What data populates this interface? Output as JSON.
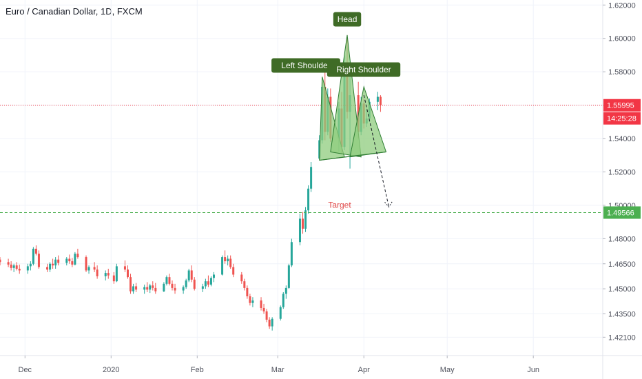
{
  "header": {
    "title": "Euro / Canadian Dollar, 1D, FXCM"
  },
  "colors": {
    "up": "#26a69a",
    "down": "#ef5350",
    "pattern_fill": "#8fcc7e",
    "pattern_stroke": "#2e7d32",
    "label_bg": "#3f6b26",
    "current_price": "#f23645",
    "target": "#4caf50",
    "target_text": "#e04747"
  },
  "labels": {
    "head": "Head",
    "left_shoulder": "Left Shoulder",
    "right_shoulder": "Right Shoulder",
    "target": "Target"
  },
  "price_tags": {
    "current": "1.55995",
    "countdown": "14:25:28",
    "target": "1.49566"
  },
  "chart_data": {
    "type": "candlestick",
    "title": "Euro / Canadian Dollar, 1D, FXCM",
    "x_range": [
      "2019-11-22",
      "2020-06-26"
    ],
    "ylim": [
      1.41,
      1.623
    ],
    "y_ticks": [
      "1.62000",
      "1.60000",
      "1.58000",
      "1.56000",
      "1.54000",
      "1.52000",
      "1.50000",
      "1.48000",
      "1.46500",
      "1.45000",
      "1.43500",
      "1.42100"
    ],
    "x_ticks": [
      {
        "date": "2019-12-01",
        "label": "Dec"
      },
      {
        "date": "2020-01-01",
        "label": "2020"
      },
      {
        "date": "2020-02-01",
        "label": "Feb"
      },
      {
        "date": "2020-03-01",
        "label": "Mar"
      },
      {
        "date": "2020-04-01",
        "label": "Apr"
      },
      {
        "date": "2020-05-01",
        "label": "May"
      },
      {
        "date": "2020-06-01",
        "label": "Jun"
      }
    ],
    "current_price": 1.55995,
    "target_price": 1.49566,
    "candles": [
      [
        "2019-11-22",
        1.4675,
        1.469,
        1.464,
        1.466
      ],
      [
        "2019-11-25",
        1.466,
        1.468,
        1.463,
        1.4645
      ],
      [
        "2019-11-26",
        1.4645,
        1.4665,
        1.461,
        1.4625
      ],
      [
        "2019-11-27",
        1.4625,
        1.465,
        1.46,
        1.464
      ],
      [
        "2019-11-28",
        1.464,
        1.466,
        1.461,
        1.462
      ],
      [
        "2019-11-29",
        1.462,
        1.4645,
        1.459,
        1.461
      ],
      [
        "2019-12-02",
        1.461,
        1.465,
        1.459,
        1.4635
      ],
      [
        "2019-12-03",
        1.4635,
        1.4665,
        1.461,
        1.465
      ],
      [
        "2019-12-04",
        1.465,
        1.475,
        1.464,
        1.474
      ],
      [
        "2019-12-05",
        1.474,
        1.476,
        1.47,
        1.471
      ],
      [
        "2019-12-06",
        1.471,
        1.473,
        1.462,
        1.463
      ],
      [
        "2019-12-09",
        1.463,
        1.465,
        1.46,
        1.4615
      ],
      [
        "2019-12-10",
        1.4615,
        1.466,
        1.46,
        1.465
      ],
      [
        "2019-12-11",
        1.465,
        1.468,
        1.462,
        1.464
      ],
      [
        "2019-12-12",
        1.464,
        1.469,
        1.462,
        1.4675
      ],
      [
        "2019-12-13",
        1.4675,
        1.47,
        1.464,
        1.4655
      ],
      [
        "2019-12-16",
        1.4655,
        1.469,
        1.464,
        1.468
      ],
      [
        "2019-12-17",
        1.468,
        1.4705,
        1.465,
        1.4665
      ],
      [
        "2019-12-18",
        1.4665,
        1.4685,
        1.463,
        1.4645
      ],
      [
        "2019-12-19",
        1.4645,
        1.472,
        1.464,
        1.471
      ],
      [
        "2019-12-20",
        1.471,
        1.474,
        1.468,
        1.469
      ],
      [
        "2019-12-23",
        1.469,
        1.47,
        1.46,
        1.461
      ],
      [
        "2019-12-24",
        1.461,
        1.464,
        1.459,
        1.463
      ],
      [
        "2019-12-26",
        1.463,
        1.466,
        1.46,
        1.4615
      ],
      [
        "2019-12-27",
        1.4615,
        1.464,
        1.456,
        1.4575
      ],
      [
        "2019-12-30",
        1.4575,
        1.461,
        1.455,
        1.4595
      ],
      [
        "2019-12-31",
        1.4595,
        1.462,
        1.456,
        1.458
      ],
      [
        "2020-01-02",
        1.458,
        1.46,
        1.453,
        1.4545
      ],
      [
        "2020-01-03",
        1.4545,
        1.465,
        1.454,
        1.4635
      ],
      [
        "2020-01-06",
        1.4635,
        1.467,
        1.46,
        1.4615
      ],
      [
        "2020-01-07",
        1.4615,
        1.464,
        1.456,
        1.457
      ],
      [
        "2020-01-08",
        1.457,
        1.459,
        1.447,
        1.4485
      ],
      [
        "2020-01-09",
        1.4485,
        1.453,
        1.447,
        1.4515
      ],
      [
        "2020-01-10",
        1.4515,
        1.4535,
        1.448,
        1.4495
      ],
      [
        "2020-01-13",
        1.4495,
        1.4525,
        1.447,
        1.451
      ],
      [
        "2020-01-14",
        1.451,
        1.454,
        1.448,
        1.4495
      ],
      [
        "2020-01-15",
        1.4495,
        1.453,
        1.4475,
        1.452
      ],
      [
        "2020-01-16",
        1.452,
        1.4545,
        1.449,
        1.4505
      ],
      [
        "2020-01-17",
        1.4505,
        1.4535,
        1.447,
        1.4485
      ],
      [
        "2020-01-20",
        1.4485,
        1.454,
        1.448,
        1.453
      ],
      [
        "2020-01-21",
        1.453,
        1.458,
        1.452,
        1.457
      ],
      [
        "2020-01-22",
        1.457,
        1.459,
        1.452,
        1.453
      ],
      [
        "2020-01-23",
        1.453,
        1.455,
        1.449,
        1.4505
      ],
      [
        "2020-01-24",
        1.4505,
        1.453,
        1.447,
        1.449
      ],
      [
        "2020-01-27",
        1.449,
        1.452,
        1.447,
        1.451
      ],
      [
        "2020-01-28",
        1.451,
        1.456,
        1.45,
        1.455
      ],
      [
        "2020-01-29",
        1.455,
        1.462,
        1.454,
        1.461
      ],
      [
        "2020-01-30",
        1.461,
        1.464,
        1.454,
        1.4555
      ],
      [
        "2020-01-31",
        1.4555,
        1.457,
        1.449,
        1.45
      ],
      [
        "2020-02-03",
        1.45,
        1.453,
        1.448,
        1.4515
      ],
      [
        "2020-02-04",
        1.4515,
        1.456,
        1.45,
        1.4545
      ],
      [
        "2020-02-05",
        1.4545,
        1.458,
        1.451,
        1.4525
      ],
      [
        "2020-02-06",
        1.4525,
        1.4575,
        1.4515,
        1.4565
      ],
      [
        "2020-02-07",
        1.4565,
        1.46,
        1.454,
        1.4585
      ],
      [
        "2020-02-10",
        1.4585,
        1.47,
        1.458,
        1.469
      ],
      [
        "2020-02-11",
        1.469,
        1.473,
        1.465,
        1.4665
      ],
      [
        "2020-02-12",
        1.4665,
        1.47,
        1.464,
        1.468
      ],
      [
        "2020-02-13",
        1.468,
        1.47,
        1.462,
        1.463
      ],
      [
        "2020-02-14",
        1.463,
        1.465,
        1.457,
        1.4585
      ],
      [
        "2020-02-17",
        1.4585,
        1.46,
        1.453,
        1.4545
      ],
      [
        "2020-02-18",
        1.4545,
        1.456,
        1.449,
        1.4505
      ],
      [
        "2020-02-19",
        1.4505,
        1.452,
        1.444,
        1.4455
      ],
      [
        "2020-02-20",
        1.4455,
        1.447,
        1.44,
        1.4415
      ],
      [
        "2020-02-21",
        1.4415,
        1.445,
        1.439,
        1.443
      ],
      [
        "2020-02-24",
        1.443,
        1.445,
        1.437,
        1.4385
      ],
      [
        "2020-02-25",
        1.4385,
        1.441,
        1.435,
        1.4365
      ],
      [
        "2020-02-26",
        1.4365,
        1.438,
        1.43,
        1.4315
      ],
      [
        "2020-02-27",
        1.4315,
        1.433,
        1.426,
        1.4275
      ],
      [
        "2020-02-28",
        1.4275,
        1.433,
        1.425,
        1.432
      ],
      [
        "2020-03-02",
        1.432,
        1.44,
        1.431,
        1.439
      ],
      [
        "2020-03-03",
        1.439,
        1.448,
        1.438,
        1.447
      ],
      [
        "2020-03-04",
        1.447,
        1.452,
        1.444,
        1.4505
      ],
      [
        "2020-03-05",
        1.4505,
        1.465,
        1.45,
        1.464
      ],
      [
        "2020-03-06",
        1.464,
        1.48,
        1.463,
        1.478
      ],
      [
        "2020-03-09",
        1.478,
        1.495,
        1.476,
        1.492
      ],
      [
        "2020-03-10",
        1.492,
        1.496,
        1.483,
        1.486
      ],
      [
        "2020-03-11",
        1.486,
        1.499,
        1.484,
        1.497
      ],
      [
        "2020-03-12",
        1.497,
        1.512,
        1.495,
        1.51
      ],
      [
        "2020-03-13",
        1.51,
        1.526,
        1.508,
        1.523
      ],
      [
        "2020-03-16",
        1.528,
        1.542,
        1.527,
        1.539
      ],
      [
        "2020-03-17",
        1.539,
        1.574,
        1.537,
        1.571
      ],
      [
        "2020-03-18",
        1.571,
        1.58,
        1.539,
        1.544
      ],
      [
        "2020-03-19",
        1.544,
        1.57,
        1.542,
        1.565
      ],
      [
        "2020-03-20",
        1.565,
        1.57,
        1.538,
        1.54
      ],
      [
        "2020-03-23",
        1.54,
        1.562,
        1.532,
        1.558
      ],
      [
        "2020-03-24",
        1.558,
        1.568,
        1.531,
        1.535
      ],
      [
        "2020-03-25",
        1.535,
        1.59,
        1.533,
        1.582
      ],
      [
        "2020-03-26",
        1.582,
        1.602,
        1.552,
        1.556
      ],
      [
        "2020-03-27",
        1.556,
        1.586,
        1.522,
        1.566
      ],
      [
        "2020-03-30",
        1.566,
        1.574,
        1.54,
        1.544
      ],
      [
        "2020-03-31",
        1.544,
        1.565,
        1.542,
        1.561
      ],
      [
        "2020-04-01",
        1.561,
        1.564,
        1.546,
        1.549
      ],
      [
        "2020-04-02",
        1.549,
        1.558,
        1.547,
        1.552
      ],
      [
        "2020-04-03",
        1.552,
        1.564,
        1.55,
        1.562
      ],
      [
        "2020-04-06",
        1.562,
        1.568,
        1.557,
        1.565
      ],
      [
        "2020-04-07",
        1.565,
        1.566,
        1.556,
        1.56
      ]
    ]
  }
}
